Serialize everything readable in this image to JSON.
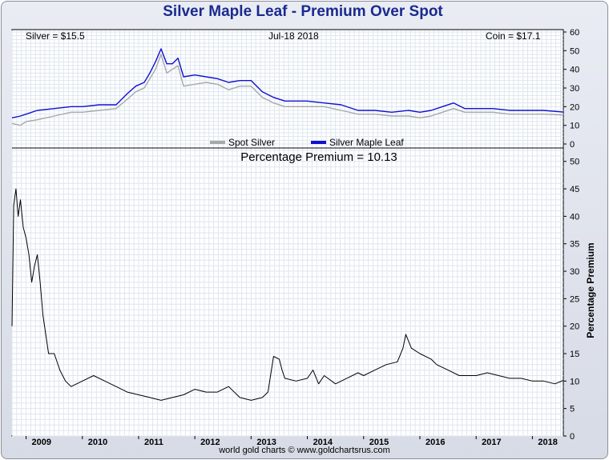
{
  "title": "Silver Maple Leaf - Premium Over Spot",
  "footer": "world gold charts © www.goldchartsrus.com",
  "top_panel": {
    "silver_text": "Silver = $15.5",
    "date_text": "Jul-18  2018",
    "coin_text": "Coin = $17.1",
    "legend": [
      {
        "label": "Spot Silver",
        "color": "#a8a8a8"
      },
      {
        "label": "Silver Maple Leaf",
        "color": "#1010d0"
      }
    ]
  },
  "bottom_panel": {
    "title": "Percentage Premium = 10.13",
    "ylabel": "Percentage Premium"
  },
  "colors": {
    "spot": "#a8a8a8",
    "coin": "#1010d0",
    "premium": "#000000",
    "grid": "#dde6ef",
    "title": "#1a2a8f"
  },
  "chart_data": [
    {
      "type": "line",
      "title": "",
      "xlabel": "",
      "ylabel": "",
      "xlim": [
        2008.75,
        2018.55
      ],
      "ylim": [
        0,
        60
      ],
      "y_ticks": [
        0,
        10,
        20,
        30,
        40,
        50,
        60
      ],
      "grid": true,
      "legend_position": "bottom-center",
      "x": [
        2008.75,
        2008.9,
        2009.0,
        2009.2,
        2009.5,
        2009.8,
        2010.0,
        2010.3,
        2010.6,
        2010.8,
        2010.95,
        2011.1,
        2011.2,
        2011.3,
        2011.4,
        2011.5,
        2011.6,
        2011.7,
        2011.8,
        2012.0,
        2012.2,
        2012.4,
        2012.6,
        2012.8,
        2013.0,
        2013.2,
        2013.4,
        2013.6,
        2013.8,
        2014.0,
        2014.3,
        2014.6,
        2014.9,
        2015.2,
        2015.5,
        2015.8,
        2016.0,
        2016.2,
        2016.4,
        2016.6,
        2016.8,
        2017.0,
        2017.3,
        2017.6,
        2017.9,
        2018.2,
        2018.55
      ],
      "series": [
        {
          "name": "Spot Silver",
          "values": [
            11,
            10,
            12,
            13,
            15,
            17,
            17,
            18,
            19,
            24,
            28,
            30,
            35,
            40,
            48,
            38,
            40,
            42,
            31,
            32,
            33,
            32,
            29,
            31,
            31,
            25,
            22,
            20,
            20,
            20,
            20,
            18,
            16,
            16,
            15,
            15,
            14,
            15,
            17,
            19,
            17,
            17,
            17,
            16,
            16,
            16,
            15.5
          ]
        },
        {
          "name": "Silver Maple Leaf",
          "values": [
            14,
            15,
            16,
            18,
            19,
            20,
            20,
            21,
            21,
            27,
            31,
            33,
            38,
            44,
            51,
            43,
            43,
            46,
            36,
            37,
            36,
            35,
            33,
            34,
            34,
            28,
            25,
            23,
            23,
            23,
            22,
            21,
            18,
            18,
            17,
            18,
            17,
            18,
            20,
            22,
            19,
            19,
            19,
            18,
            18,
            18,
            17.1
          ]
        }
      ]
    },
    {
      "type": "line",
      "title": "Percentage Premium = 10.13",
      "xlabel": "",
      "ylabel": "Percentage Premium",
      "xlim": [
        2008.75,
        2018.55
      ],
      "ylim": [
        0,
        52
      ],
      "y_ticks": [
        0,
        5,
        10,
        15,
        20,
        25,
        30,
        35,
        40,
        45,
        50
      ],
      "x_ticks": [
        2009,
        2010,
        2011,
        2012,
        2013,
        2014,
        2015,
        2016,
        2017,
        2018
      ],
      "grid": true,
      "x": [
        2008.75,
        2008.78,
        2008.82,
        2008.86,
        2008.9,
        2008.95,
        2009.0,
        2009.05,
        2009.1,
        2009.15,
        2009.2,
        2009.25,
        2009.3,
        2009.4,
        2009.5,
        2009.6,
        2009.7,
        2009.8,
        2010.0,
        2010.2,
        2010.4,
        2010.6,
        2010.8,
        2011.0,
        2011.2,
        2011.4,
        2011.6,
        2011.8,
        2012.0,
        2012.2,
        2012.4,
        2012.6,
        2012.8,
        2013.0,
        2013.2,
        2013.25,
        2013.3,
        2013.4,
        2013.5,
        2013.55,
        2013.6,
        2013.8,
        2014.0,
        2014.1,
        2014.2,
        2014.3,
        2014.5,
        2014.7,
        2014.9,
        2015.0,
        2015.2,
        2015.4,
        2015.6,
        2015.7,
        2015.75,
        2015.85,
        2016.0,
        2016.2,
        2016.3,
        2016.5,
        2016.7,
        2016.9,
        2017.0,
        2017.2,
        2017.4,
        2017.6,
        2017.8,
        2018.0,
        2018.2,
        2018.4,
        2018.55
      ],
      "series": [
        {
          "name": "",
          "values": [
            20,
            42,
            45,
            40,
            43,
            38,
            36,
            33,
            28,
            31,
            33,
            28,
            22,
            15,
            15,
            12,
            10,
            9,
            10,
            11,
            10,
            9,
            8,
            7.5,
            7,
            6.5,
            7,
            7.5,
            8.5,
            8,
            8,
            9,
            7,
            6.5,
            7,
            7.5,
            8,
            14.5,
            14,
            12,
            10.5,
            10,
            10.5,
            12,
            9.5,
            11,
            9.5,
            10.5,
            11.5,
            11,
            12,
            13,
            13.5,
            16,
            18.5,
            16,
            15,
            14,
            13,
            12,
            11,
            11,
            11,
            11.5,
            11,
            10.5,
            10.5,
            10,
            10,
            9.5,
            10.13
          ]
        }
      ]
    }
  ]
}
